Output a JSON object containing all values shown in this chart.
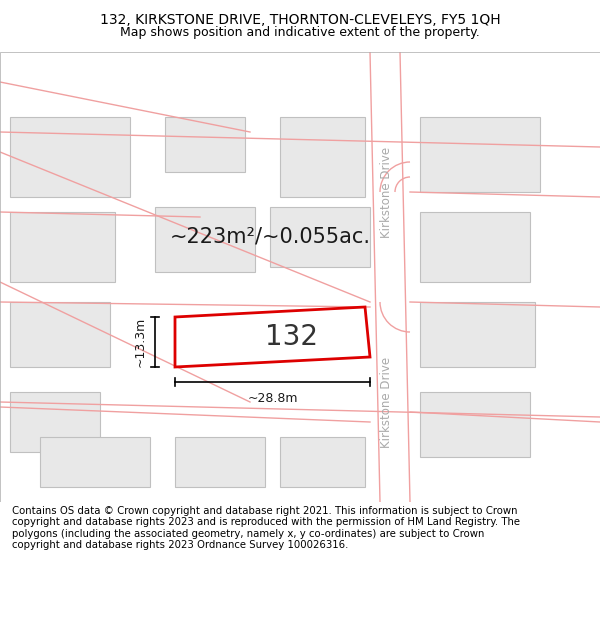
{
  "title_line1": "132, KIRKSTONE DRIVE, THORNTON-CLEVELEYS, FY5 1QH",
  "title_line2": "Map shows position and indicative extent of the property.",
  "footer_text": "Contains OS data © Crown copyright and database right 2021. This information is subject to Crown copyright and database rights 2023 and is reproduced with the permission of HM Land Registry. The polygons (including the associated geometry, namely x, y co-ordinates) are subject to Crown copyright and database rights 2023 Ordnance Survey 100026316.",
  "area_text": "~223m²/~0.055ac.",
  "property_number": "132",
  "dim_width": "~28.8m",
  "dim_height": "~13.3m",
  "map_bg": "#f8f8f8",
  "block_color": "#e8e8e8",
  "block_edge": "#c0c0c0",
  "highlight_color": "#dd0000",
  "street_line_color": "#f0a0a0",
  "street_label": "Kirkstone Drive",
  "title_fontsize": 10,
  "footer_fontsize": 7.5
}
